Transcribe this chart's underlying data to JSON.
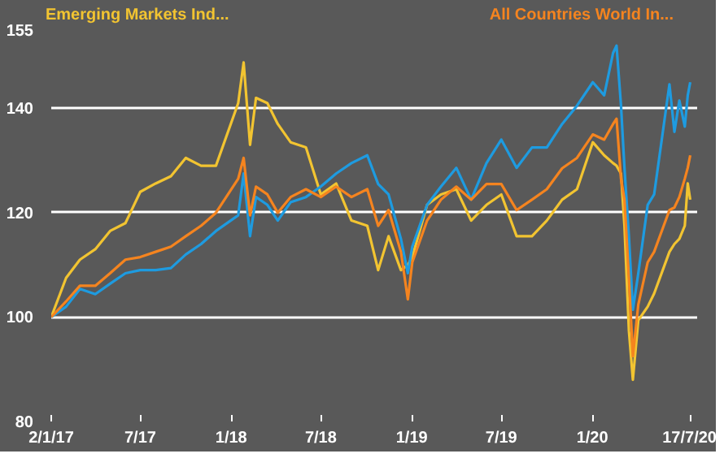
{
  "chart_data": {
    "type": "line",
    "x": [
      "2017-01-02",
      "2017-02-01",
      "2017-03-01",
      "2017-04-01",
      "2017-05-01",
      "2017-06-01",
      "2017-07-01",
      "2017-08-01",
      "2017-09-01",
      "2017-10-01",
      "2017-11-01",
      "2017-12-01",
      "2018-01-15",
      "2018-01-26",
      "2018-02-08",
      "2018-02-20",
      "2018-03-15",
      "2018-04-05",
      "2018-05-01",
      "2018-06-01",
      "2018-07-01",
      "2018-08-01",
      "2018-09-01",
      "2018-10-03",
      "2018-10-25",
      "2018-11-15",
      "2018-12-10",
      "2018-12-24",
      "2019-01-02",
      "2019-02-01",
      "2019-03-01",
      "2019-04-01",
      "2019-05-01",
      "2019-06-01",
      "2019-07-01",
      "2019-08-01",
      "2019-09-01",
      "2019-10-01",
      "2019-11-01",
      "2019-12-01",
      "2020-01-02",
      "2020-01-25",
      "2020-02-12",
      "2020-02-19",
      "2020-02-28",
      "2020-03-06",
      "2020-03-15",
      "2020-03-23",
      "2020-04-03",
      "2020-04-22",
      "2020-05-05",
      "2020-06-05",
      "2020-06-15",
      "2020-06-25",
      "2020-07-06",
      "2020-07-12",
      "2020-07-17"
    ],
    "series": [
      {
        "name": "Emerging Markets Ind...",
        "color": "#f2c431",
        "values": [
          100,
          107.5,
          111,
          113,
          116.5,
          118,
          124,
          125.6,
          127,
          130.5,
          129,
          129,
          141,
          148.8,
          133,
          142,
          141,
          137,
          133.5,
          132.5,
          123.5,
          125.6,
          118.5,
          117.5,
          109,
          115.5,
          109,
          110,
          111.5,
          121.5,
          123.5,
          124.5,
          118.5,
          121.5,
          123.5,
          115.5,
          115.5,
          118.5,
          122.5,
          124.5,
          133.5,
          131,
          129.5,
          129,
          127.5,
          117.5,
          97.4,
          88,
          99.4,
          102,
          104.5,
          112.5,
          114,
          115,
          117.5,
          125.6,
          122.5
        ]
      },
      {
        "color": "#1e9be0",
        "values": [
          100,
          102,
          105.4,
          104.4,
          106.4,
          108.4,
          109,
          109,
          109.4,
          112,
          114,
          116.5,
          119.5,
          127.5,
          115.5,
          123,
          121.5,
          118.5,
          122,
          123,
          125,
          127.5,
          129.5,
          131,
          125.5,
          123.5,
          115,
          108.4,
          113.5,
          121.5,
          125,
          128.6,
          122.5,
          129.5,
          134,
          128.6,
          132.5,
          132.5,
          137,
          140.5,
          145,
          142.5,
          150.6,
          152,
          140.6,
          128.6,
          115.5,
          101.4,
          108.4,
          121.5,
          123.5,
          144.6,
          135.5,
          141.5,
          136.5,
          142.5,
          145
        ]
      },
      {
        "name": "All Countries World In...",
        "color": "#f5841f",
        "values": [
          100,
          103,
          106,
          106,
          108.4,
          111,
          111.5,
          112.5,
          113.5,
          115.5,
          117.5,
          120,
          126.5,
          130.5,
          119.5,
          125,
          123.5,
          120,
          123,
          124.5,
          123,
          125,
          123,
          124.5,
          117.5,
          120.5,
          112.5,
          103.4,
          110.5,
          118.5,
          122.5,
          125,
          122.5,
          125.5,
          125.5,
          120.5,
          122.5,
          124.5,
          128.5,
          130.5,
          135,
          134,
          137,
          138,
          126.5,
          122.5,
          107.5,
          92.5,
          102.4,
          110.5,
          112.5,
          120.5,
          121,
          123,
          126.5,
          128.6,
          131
        ]
      }
    ],
    "ylim": [
      80,
      155
    ],
    "yticks": [
      80,
      100,
      120,
      140,
      155
    ],
    "xlim": [
      "2017-01-02",
      "2020-07-31"
    ],
    "xticks": [
      {
        "value": "2017-01-02",
        "label": "2/1/17"
      },
      {
        "value": "2017-07-01",
        "label": "7/17"
      },
      {
        "value": "2018-01-01",
        "label": "1/18"
      },
      {
        "value": "2018-07-01",
        "label": "7/18"
      },
      {
        "value": "2019-01-01",
        "label": "1/19"
      },
      {
        "value": "2019-07-01",
        "label": "7/19"
      },
      {
        "value": "2020-01-01",
        "label": "1/20"
      },
      {
        "value": "2020-07-17",
        "label": "17/7/20"
      }
    ],
    "grid": "y",
    "line_style": "solid"
  }
}
